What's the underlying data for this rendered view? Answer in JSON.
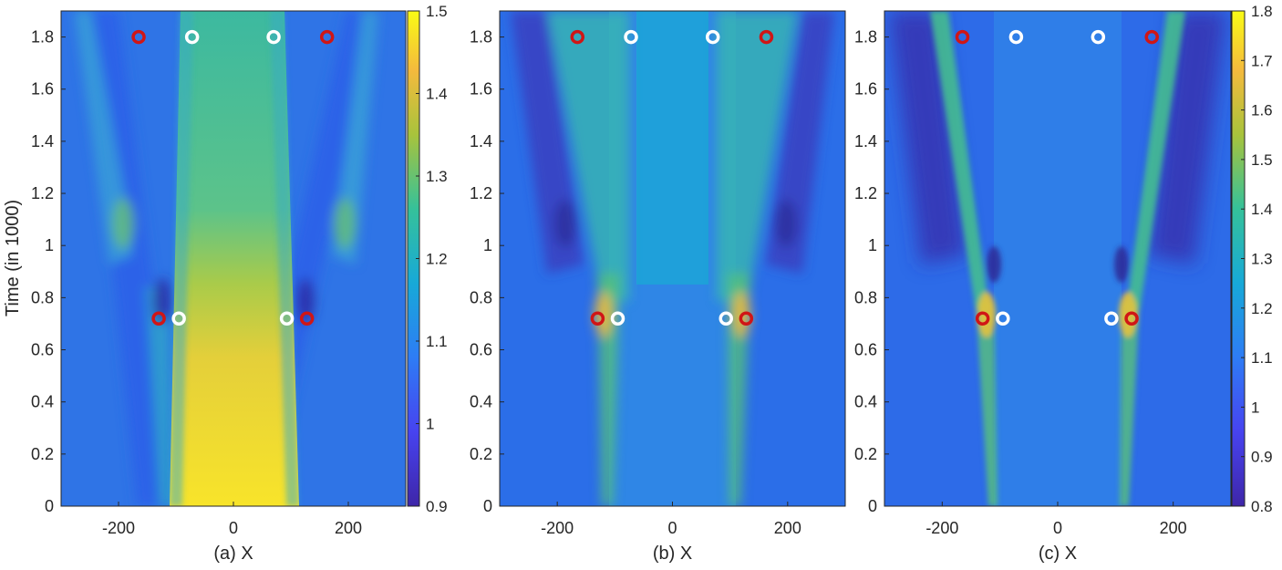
{
  "ylabel": "Time (in 1000)",
  "chart_data": [
    {
      "type": "heatmap",
      "xlabel": "(a) X",
      "ylabel": "Time (in 1000)",
      "xlim": [
        -300,
        300
      ],
      "ylim": [
        0,
        1.9
      ],
      "xticks": [
        -200,
        0,
        200
      ],
      "yticks": [
        0,
        0.2,
        0.4,
        0.6,
        0.8,
        1,
        1.2,
        1.4,
        1.6,
        1.8
      ],
      "colorbar": {
        "min": 0.9,
        "max": 1.5,
        "ticks": [
          0.9,
          1,
          1.1,
          1.2,
          1.3,
          1.4,
          1.5
        ]
      },
      "markers": [
        {
          "color": "red",
          "x": -165,
          "y": 1.8
        },
        {
          "color": "white",
          "x": -72,
          "y": 1.8
        },
        {
          "color": "white",
          "x": 70,
          "y": 1.8
        },
        {
          "color": "red",
          "x": 163,
          "y": 1.8
        },
        {
          "color": "red",
          "x": -130,
          "y": 0.72
        },
        {
          "color": "white",
          "x": -95,
          "y": 0.72
        },
        {
          "color": "white",
          "x": 93,
          "y": 0.72
        },
        {
          "color": "red",
          "x": 128,
          "y": 0.72
        }
      ]
    },
    {
      "type": "heatmap",
      "xlabel": "(b) X",
      "ylabel": "",
      "xlim": [
        -300,
        300
      ],
      "ylim": [
        0,
        1.9
      ],
      "xticks": [
        -200,
        0,
        200
      ],
      "yticks": [
        0,
        0.2,
        0.4,
        0.6,
        0.8,
        1,
        1.2,
        1.4,
        1.6,
        1.8
      ],
      "markers": [
        {
          "color": "red",
          "x": -165,
          "y": 1.8
        },
        {
          "color": "white",
          "x": -72,
          "y": 1.8
        },
        {
          "color": "white",
          "x": 70,
          "y": 1.8
        },
        {
          "color": "red",
          "x": 163,
          "y": 1.8
        },
        {
          "color": "red",
          "x": -130,
          "y": 0.72
        },
        {
          "color": "white",
          "x": -95,
          "y": 0.72
        },
        {
          "color": "white",
          "x": 93,
          "y": 0.72
        },
        {
          "color": "red",
          "x": 128,
          "y": 0.72
        }
      ]
    },
    {
      "type": "heatmap",
      "xlabel": "(c) X",
      "ylabel": "",
      "xlim": [
        -300,
        300
      ],
      "ylim": [
        0,
        1.9
      ],
      "xticks": [
        -200,
        0,
        200
      ],
      "yticks": [
        0,
        0.2,
        0.4,
        0.6,
        0.8,
        1,
        1.2,
        1.4,
        1.6,
        1.8
      ],
      "colorbar": {
        "min": 0.8,
        "max": 1.8,
        "ticks": [
          0.8,
          0.9,
          1,
          1.1,
          1.2,
          1.3,
          1.4,
          1.5,
          1.6,
          1.7,
          1.8
        ]
      },
      "markers": [
        {
          "color": "red",
          "x": -165,
          "y": 1.8
        },
        {
          "color": "white",
          "x": -72,
          "y": 1.8
        },
        {
          "color": "white",
          "x": 70,
          "y": 1.8
        },
        {
          "color": "red",
          "x": 163,
          "y": 1.8
        },
        {
          "color": "red",
          "x": -130,
          "y": 0.72
        },
        {
          "color": "white",
          "x": -95,
          "y": 0.72
        },
        {
          "color": "white",
          "x": 93,
          "y": 0.72
        },
        {
          "color": "red",
          "x": 128,
          "y": 0.72
        }
      ]
    }
  ]
}
